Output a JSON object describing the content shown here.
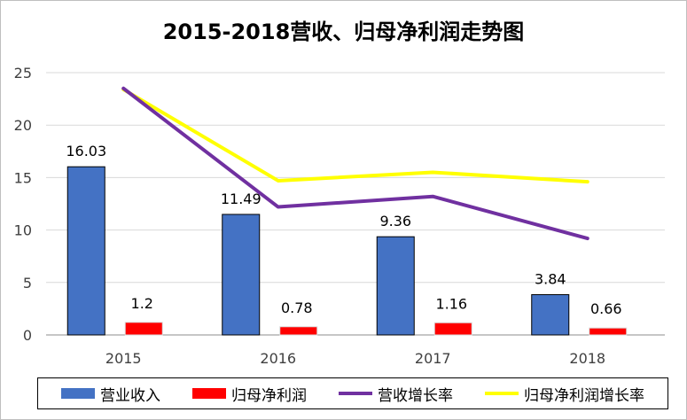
{
  "chart_data": {
    "type": "bar",
    "title": "2015-2018营收、归母净利润走势图",
    "categories": [
      "2015",
      "2016",
      "2017",
      "2018"
    ],
    "ylim": [
      0,
      25
    ],
    "yticks": [
      "0",
      "5",
      "10",
      "15",
      "20",
      "25"
    ],
    "grid": true,
    "legend_position": "bottom",
    "series": [
      {
        "name": "营业收入",
        "type": "bar",
        "color": "#4472c4",
        "values": [
          16.03,
          11.49,
          9.36,
          3.84
        ],
        "labels": [
          "16.03",
          "11.49",
          "9.36",
          "3.84"
        ]
      },
      {
        "name": "归母净利润",
        "type": "bar",
        "color": "#ff0000",
        "values": [
          1.2,
          0.78,
          1.16,
          0.66
        ],
        "labels": [
          "1.2",
          "0.78",
          "1.16",
          "0.66"
        ]
      },
      {
        "name": "营收增长率",
        "type": "line",
        "color": "#7030a0",
        "values": [
          23.5,
          12.2,
          13.2,
          9.2
        ]
      },
      {
        "name": "归母净利润增长率",
        "type": "line",
        "color": "#ffff00",
        "values": [
          23.4,
          14.7,
          15.5,
          14.6
        ]
      }
    ]
  }
}
